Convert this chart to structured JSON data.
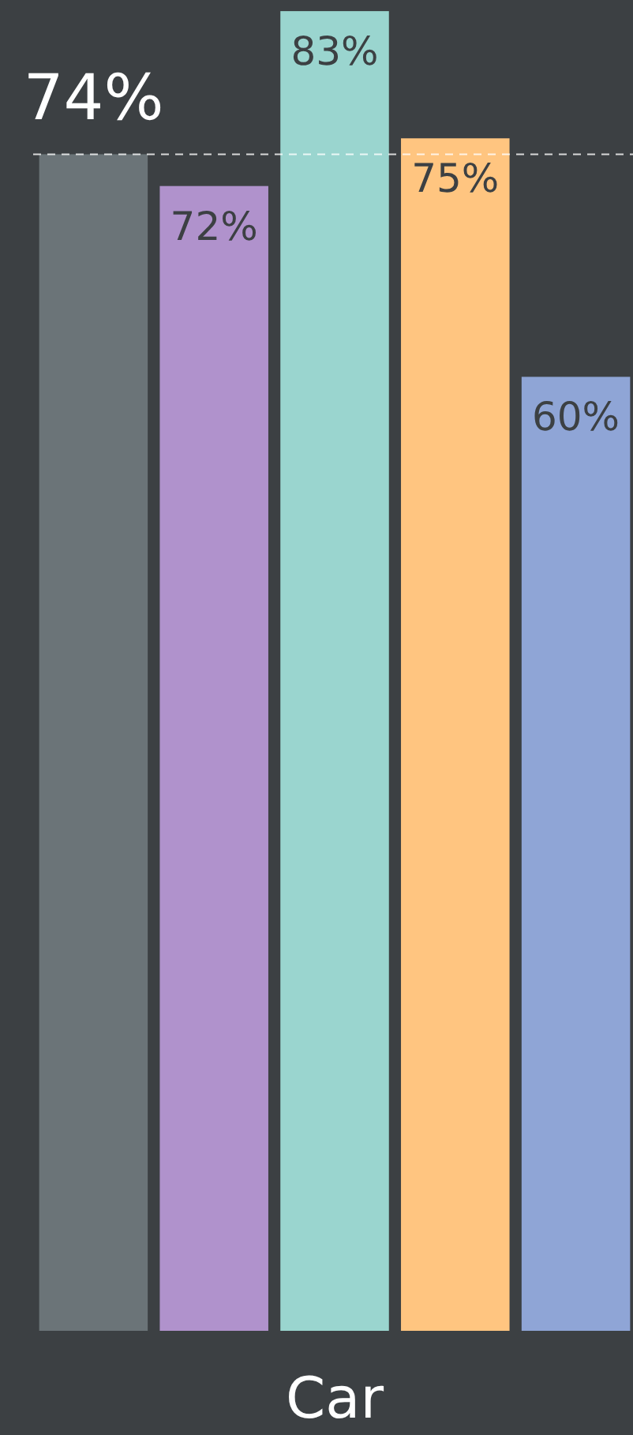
{
  "chart_data": {
    "type": "bar",
    "categories": [
      null,
      null,
      null,
      null,
      null
    ],
    "xlabel": "Car",
    "ylim": [
      0,
      83.7
    ],
    "data_labels": true,
    "values": [
      74,
      72,
      83,
      75,
      60
    ],
    "colors": [
      "#6b7478",
      "#b092cc",
      "#9ad5cf",
      "#ffc580",
      "#8fa5d6"
    ],
    "value_labels": [
      "74%",
      "72%",
      "83%",
      "75%",
      "60%"
    ],
    "ref_lines": [
      {
        "axis": "y",
        "value": 74,
        "color": "#ffffff",
        "line_style": "dashed"
      }
    ]
  }
}
